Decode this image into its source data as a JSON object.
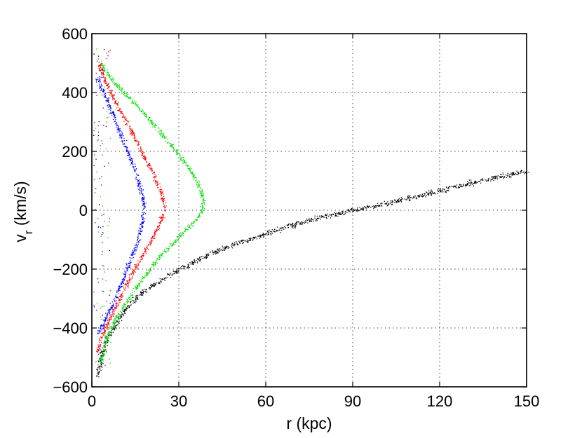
{
  "chart_data": {
    "type": "scatter",
    "title": "",
    "xlabel": "r (kpc)",
    "ylabel_main": "v",
    "ylabel_sub": "r",
    "ylabel_unit": " (km/s)",
    "xlim": [
      0,
      150
    ],
    "ylim": [
      -600,
      600
    ],
    "x_ticks": [
      0,
      30,
      60,
      90,
      120,
      150
    ],
    "x_tick_labels": [
      "0",
      "30",
      "60",
      "90",
      "120",
      "150"
    ],
    "y_ticks": [
      -600,
      -400,
      -200,
      0,
      200,
      400,
      600
    ],
    "y_tick_labels": [
      "−600",
      "−400",
      "−200",
      "0",
      "200",
      "400",
      "600"
    ],
    "grid": true,
    "legend": "none",
    "series": [
      {
        "color": "#000000",
        "description_points": [
          [
            2,
            -560
          ],
          [
            3,
            -500
          ],
          [
            5,
            -440
          ],
          [
            8,
            -390
          ],
          [
            12,
            -330
          ],
          [
            16,
            -290
          ],
          [
            20,
            -260
          ],
          [
            25,
            -230
          ],
          [
            30,
            -200
          ],
          [
            35,
            -175
          ],
          [
            40,
            -150
          ],
          [
            45,
            -130
          ],
          [
            50,
            -112
          ],
          [
            55,
            -95
          ],
          [
            60,
            -80
          ],
          [
            65,
            -62
          ],
          [
            70,
            -47
          ],
          [
            75,
            -33
          ],
          [
            80,
            -20
          ],
          [
            85,
            -10
          ],
          [
            90,
            0
          ],
          [
            95,
            10
          ],
          [
            100,
            20
          ],
          [
            105,
            32
          ],
          [
            110,
            43
          ],
          [
            115,
            55
          ],
          [
            120,
            67
          ],
          [
            125,
            79
          ],
          [
            130,
            91
          ],
          [
            135,
            103
          ],
          [
            140,
            114
          ],
          [
            145,
            124
          ],
          [
            150,
            133
          ]
        ]
      },
      {
        "color": "#00dd00",
        "description_points": [
          [
            3,
            -520
          ],
          [
            5,
            -430
          ],
          [
            8,
            -370
          ],
          [
            12,
            -310
          ],
          [
            16,
            -250
          ],
          [
            20,
            -200
          ],
          [
            24,
            -150
          ],
          [
            28,
            -110
          ],
          [
            32,
            -70
          ],
          [
            35,
            -40
          ],
          [
            37.5,
            -10
          ],
          [
            38.5,
            20
          ],
          [
            38,
            50
          ],
          [
            36,
            100
          ],
          [
            33,
            150
          ],
          [
            29,
            200
          ],
          [
            24,
            260
          ],
          [
            19,
            320
          ],
          [
            14,
            370
          ],
          [
            10,
            410
          ],
          [
            7,
            440
          ],
          [
            5,
            470
          ],
          [
            3,
            500
          ]
        ]
      },
      {
        "color": "#ff0000",
        "description_points": [
          [
            2,
            -480
          ],
          [
            3,
            -440
          ],
          [
            5,
            -390
          ],
          [
            8,
            -330
          ],
          [
            11,
            -270
          ],
          [
            14,
            -210
          ],
          [
            17,
            -160
          ],
          [
            20,
            -110
          ],
          [
            22,
            -70
          ],
          [
            24,
            -30
          ],
          [
            25,
            0
          ],
          [
            24.5,
            40
          ],
          [
            23,
            80
          ],
          [
            21,
            130
          ],
          [
            18,
            180
          ],
          [
            15,
            240
          ],
          [
            12,
            300
          ],
          [
            9,
            350
          ],
          [
            7,
            390
          ],
          [
            5,
            430
          ],
          [
            3,
            480
          ],
          [
            2,
            510
          ]
        ]
      },
      {
        "color": "#0000ff",
        "description_points": [
          [
            2,
            -420
          ],
          [
            5,
            -360
          ],
          [
            8,
            -300
          ],
          [
            10,
            -250
          ],
          [
            12,
            -200
          ],
          [
            14,
            -150
          ],
          [
            16,
            -100
          ],
          [
            17,
            -50
          ],
          [
            18,
            0
          ],
          [
            17.5,
            40
          ],
          [
            16.5,
            80
          ],
          [
            15,
            130
          ],
          [
            13,
            180
          ],
          [
            11,
            230
          ],
          [
            9,
            280
          ],
          [
            7,
            330
          ],
          [
            5,
            380
          ],
          [
            3,
            420
          ],
          [
            2,
            450
          ]
        ]
      }
    ]
  }
}
